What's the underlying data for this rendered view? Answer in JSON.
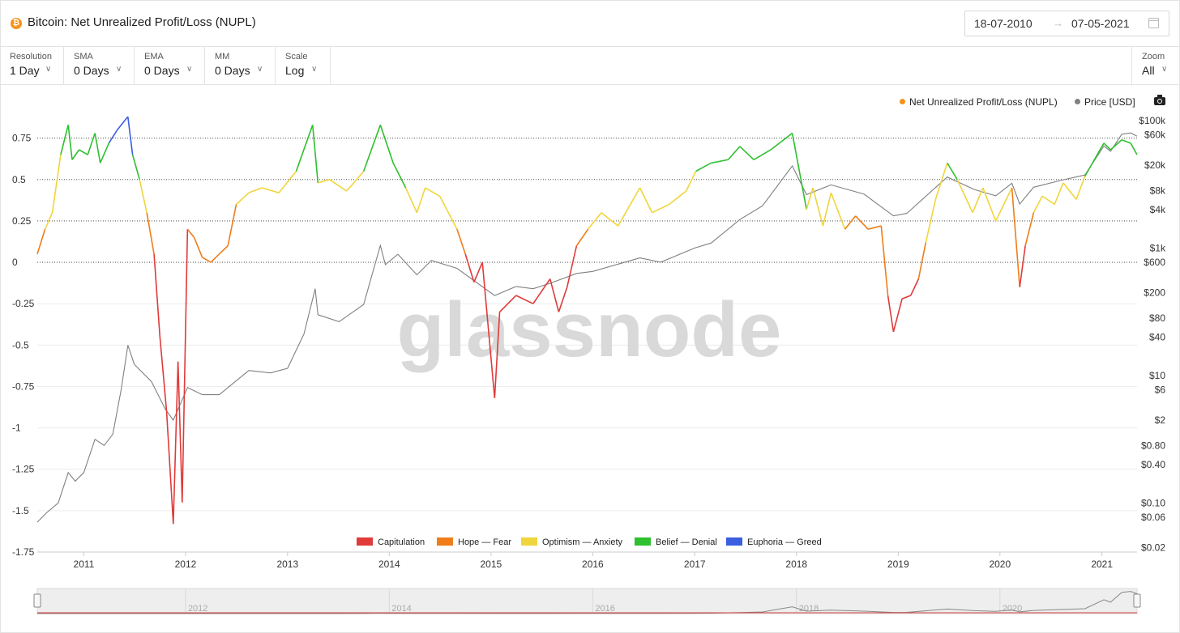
{
  "header": {
    "coin_icon": "bitcoin-icon",
    "title": "Bitcoin: Net Unrealized Profit/Loss (NUPL)",
    "date_start": "18-07-2010",
    "date_end": "07-05-2021",
    "date_arrow": "→",
    "calendar_icon": "calendar-icon"
  },
  "toolbar": {
    "resolution": {
      "label": "Resolution",
      "value": "1 Day"
    },
    "sma": {
      "label": "SMA",
      "value": "0 Days"
    },
    "ema": {
      "label": "EMA",
      "value": "0 Days"
    },
    "mm": {
      "label": "MM",
      "value": "0 Days"
    },
    "scale": {
      "label": "Scale",
      "value": "Log"
    },
    "zoom": {
      "label": "Zoom",
      "value": "All"
    },
    "chevron": "∨"
  },
  "legend_top": {
    "nupl": {
      "label": "Net Unrealized Profit/Loss (NUPL)",
      "color": "#f7931a"
    },
    "price": {
      "label": "Price [USD]",
      "color": "#808080"
    },
    "camera_icon": "camera-icon"
  },
  "watermark": "glassnode",
  "chart_data": {
    "type": "line",
    "x_axis": {
      "ticks": [
        "2011",
        "2012",
        "2013",
        "2014",
        "2015",
        "2016",
        "2017",
        "2018",
        "2019",
        "2020",
        "2021"
      ],
      "range": [
        "2010-07-18",
        "2021-05-07"
      ]
    },
    "y_left": {
      "ticks": [
        "0.75",
        "0.5",
        "0.25",
        "0",
        "-0.25",
        "-0.5",
        "-0.75",
        "-1",
        "-1.25",
        "-1.5",
        "-1.75"
      ],
      "range": [
        -1.75,
        0.9
      ],
      "dotted_lines": [
        0.75,
        0.5,
        0.25,
        0
      ]
    },
    "y_right": {
      "scale": "log",
      "ticks": [
        {
          "label": "$100k",
          "value": 100000
        },
        {
          "label": "$60k",
          "value": 60000
        },
        {
          "label": "$20k",
          "value": 20000
        },
        {
          "label": "$8k",
          "value": 8000
        },
        {
          "label": "$4k",
          "value": 4000
        },
        {
          "label": "$1k",
          "value": 1000
        },
        {
          "label": "$600",
          "value": 600
        },
        {
          "label": "$200",
          "value": 200
        },
        {
          "label": "$80",
          "value": 80
        },
        {
          "label": "$40",
          "value": 40
        },
        {
          "label": "$10",
          "value": 10
        },
        {
          "label": "$6",
          "value": 6
        },
        {
          "label": "$2",
          "value": 2
        },
        {
          "label": "$0.80",
          "value": 0.8
        },
        {
          "label": "$0.40",
          "value": 0.4
        },
        {
          "label": "$0.10",
          "value": 0.1
        },
        {
          "label": "$0.06",
          "value": 0.06
        },
        {
          "label": "$0.02",
          "value": 0.02
        }
      ]
    },
    "zones": [
      {
        "name": "Capitulation",
        "color": "#e03a3a",
        "min": -10,
        "max": 0
      },
      {
        "name": "Hope — Fear",
        "color": "#ef7d1a",
        "min": 0,
        "max": 0.25
      },
      {
        "name": "Optimism — Anxiety",
        "color": "#f0d53c",
        "min": 0.25,
        "max": 0.5
      },
      {
        "name": "Belief — Denial",
        "color": "#2ec02e",
        "min": 0.5,
        "max": 0.75
      },
      {
        "name": "Euphoria — Greed",
        "color": "#3b5fe0",
        "min": 0.75,
        "max": 10
      }
    ],
    "series": [
      {
        "name": "Net Unrealized Profit/Loss (NUPL)",
        "axis": "left",
        "points": [
          [
            "2010-07-18",
            0.05
          ],
          [
            "2010-08-15",
            0.2
          ],
          [
            "2010-09-10",
            0.3
          ],
          [
            "2010-10-10",
            0.65
          ],
          [
            "2010-11-06",
            0.83
          ],
          [
            "2010-11-20",
            0.62
          ],
          [
            "2010-12-15",
            0.68
          ],
          [
            "2011-01-15",
            0.65
          ],
          [
            "2011-02-10",
            0.78
          ],
          [
            "2011-03-01",
            0.6
          ],
          [
            "2011-04-01",
            0.72
          ],
          [
            "2011-05-01",
            0.8
          ],
          [
            "2011-06-08",
            0.88
          ],
          [
            "2011-06-25",
            0.65
          ],
          [
            "2011-07-20",
            0.5
          ],
          [
            "2011-08-15",
            0.3
          ],
          [
            "2011-09-10",
            0.05
          ],
          [
            "2011-10-01",
            -0.45
          ],
          [
            "2011-10-25",
            -0.9
          ],
          [
            "2011-11-18",
            -1.58
          ],
          [
            "2011-12-05",
            -0.6
          ],
          [
            "2011-12-20",
            -1.45
          ],
          [
            "2012-01-08",
            0.2
          ],
          [
            "2012-02-01",
            0.15
          ],
          [
            "2012-03-01",
            0.03
          ],
          [
            "2012-04-01",
            0.0
          ],
          [
            "2012-05-01",
            0.05
          ],
          [
            "2012-06-01",
            0.1
          ],
          [
            "2012-07-01",
            0.35
          ],
          [
            "2012-08-15",
            0.42
          ],
          [
            "2012-10-01",
            0.45
          ],
          [
            "2012-12-01",
            0.42
          ],
          [
            "2013-02-01",
            0.55
          ],
          [
            "2013-04-01",
            0.83
          ],
          [
            "2013-04-20",
            0.48
          ],
          [
            "2013-06-01",
            0.5
          ],
          [
            "2013-08-01",
            0.43
          ],
          [
            "2013-10-01",
            0.55
          ],
          [
            "2013-11-30",
            0.83
          ],
          [
            "2014-01-15",
            0.6
          ],
          [
            "2014-03-01",
            0.45
          ],
          [
            "2014-04-10",
            0.3
          ],
          [
            "2014-05-10",
            0.45
          ],
          [
            "2014-07-01",
            0.4
          ],
          [
            "2014-09-01",
            0.2
          ],
          [
            "2014-10-01",
            0.05
          ],
          [
            "2014-11-01",
            -0.12
          ],
          [
            "2014-12-01",
            0.0
          ],
          [
            "2015-01-14",
            -0.82
          ],
          [
            "2015-02-01",
            -0.3
          ],
          [
            "2015-04-01",
            -0.2
          ],
          [
            "2015-06-01",
            -0.25
          ],
          [
            "2015-08-01",
            -0.1
          ],
          [
            "2015-09-01",
            -0.3
          ],
          [
            "2015-10-01",
            -0.15
          ],
          [
            "2015-11-04",
            0.1
          ],
          [
            "2015-12-15",
            0.2
          ],
          [
            "2016-02-01",
            0.3
          ],
          [
            "2016-04-01",
            0.22
          ],
          [
            "2016-06-18",
            0.45
          ],
          [
            "2016-08-01",
            0.3
          ],
          [
            "2016-10-01",
            0.35
          ],
          [
            "2016-12-01",
            0.43
          ],
          [
            "2017-01-05",
            0.55
          ],
          [
            "2017-03-01",
            0.6
          ],
          [
            "2017-05-01",
            0.62
          ],
          [
            "2017-06-12",
            0.7
          ],
          [
            "2017-08-01",
            0.62
          ],
          [
            "2017-10-01",
            0.68
          ],
          [
            "2017-12-17",
            0.78
          ],
          [
            "2018-02-06",
            0.32
          ],
          [
            "2018-03-01",
            0.45
          ],
          [
            "2018-04-06",
            0.22
          ],
          [
            "2018-05-05",
            0.42
          ],
          [
            "2018-06-24",
            0.2
          ],
          [
            "2018-08-01",
            0.28
          ],
          [
            "2018-09-15",
            0.2
          ],
          [
            "2018-11-01",
            0.22
          ],
          [
            "2018-11-25",
            -0.2
          ],
          [
            "2018-12-15",
            -0.42
          ],
          [
            "2019-01-15",
            -0.22
          ],
          [
            "2019-02-15",
            -0.2
          ],
          [
            "2019-03-15",
            -0.1
          ],
          [
            "2019-04-10",
            0.12
          ],
          [
            "2019-05-15",
            0.38
          ],
          [
            "2019-06-26",
            0.6
          ],
          [
            "2019-08-01",
            0.5
          ],
          [
            "2019-09-25",
            0.3
          ],
          [
            "2019-11-01",
            0.45
          ],
          [
            "2019-12-17",
            0.25
          ],
          [
            "2020-02-13",
            0.45
          ],
          [
            "2020-03-12",
            -0.15
          ],
          [
            "2020-04-01",
            0.1
          ],
          [
            "2020-05-01",
            0.3
          ],
          [
            "2020-06-01",
            0.4
          ],
          [
            "2020-07-15",
            0.35
          ],
          [
            "2020-08-15",
            0.48
          ],
          [
            "2020-10-01",
            0.38
          ],
          [
            "2020-11-01",
            0.52
          ],
          [
            "2020-12-15",
            0.65
          ],
          [
            "2021-01-08",
            0.72
          ],
          [
            "2021-02-01",
            0.68
          ],
          [
            "2021-03-13",
            0.74
          ],
          [
            "2021-04-14",
            0.72
          ],
          [
            "2021-05-07",
            0.65
          ]
        ]
      },
      {
        "name": "Price [USD]",
        "axis": "right",
        "color": "#808080",
        "points": [
          [
            "2010-07-18",
            0.05
          ],
          [
            "2010-08-20",
            0.07
          ],
          [
            "2010-10-01",
            0.1
          ],
          [
            "2010-11-06",
            0.3
          ],
          [
            "2010-12-01",
            0.22
          ],
          [
            "2011-01-01",
            0.3
          ],
          [
            "2011-02-10",
            1.0
          ],
          [
            "2011-03-15",
            0.8
          ],
          [
            "2011-04-15",
            1.2
          ],
          [
            "2011-05-15",
            6.0
          ],
          [
            "2011-06-08",
            30
          ],
          [
            "2011-07-01",
            15
          ],
          [
            "2011-08-10",
            10
          ],
          [
            "2011-09-01",
            8
          ],
          [
            "2011-10-20",
            3
          ],
          [
            "2011-11-18",
            2.0
          ],
          [
            "2012-01-08",
            6.5
          ],
          [
            "2012-03-01",
            5
          ],
          [
            "2012-05-01",
            5
          ],
          [
            "2012-08-15",
            12
          ],
          [
            "2012-11-01",
            11
          ],
          [
            "2013-01-01",
            13
          ],
          [
            "2013-03-01",
            45
          ],
          [
            "2013-04-10",
            230
          ],
          [
            "2013-04-20",
            90
          ],
          [
            "2013-07-05",
            70
          ],
          [
            "2013-10-01",
            130
          ],
          [
            "2013-11-30",
            1100
          ],
          [
            "2013-12-18",
            550
          ],
          [
            "2014-02-01",
            800
          ],
          [
            "2014-04-10",
            380
          ],
          [
            "2014-06-01",
            640
          ],
          [
            "2014-09-01",
            480
          ],
          [
            "2015-01-14",
            180
          ],
          [
            "2015-04-01",
            250
          ],
          [
            "2015-06-01",
            230
          ],
          [
            "2015-08-01",
            280
          ],
          [
            "2015-11-04",
            400
          ],
          [
            "2016-01-01",
            430
          ],
          [
            "2016-06-18",
            700
          ],
          [
            "2016-09-01",
            600
          ],
          [
            "2017-01-01",
            1000
          ],
          [
            "2017-03-01",
            1200
          ],
          [
            "2017-06-12",
            2800
          ],
          [
            "2017-09-01",
            4600
          ],
          [
            "2017-12-17",
            19500
          ],
          [
            "2018-02-06",
            6900
          ],
          [
            "2018-05-05",
            9800
          ],
          [
            "2018-09-01",
            7000
          ],
          [
            "2018-12-15",
            3200
          ],
          [
            "2019-02-01",
            3500
          ],
          [
            "2019-06-26",
            13000
          ],
          [
            "2019-10-01",
            8300
          ],
          [
            "2019-12-17",
            6600
          ],
          [
            "2020-02-13",
            10400
          ],
          [
            "2020-03-12",
            4900
          ],
          [
            "2020-05-01",
            9000
          ],
          [
            "2020-08-15",
            11800
          ],
          [
            "2020-11-01",
            14000
          ],
          [
            "2021-01-08",
            40000
          ],
          [
            "2021-02-01",
            33000
          ],
          [
            "2021-03-13",
            61000
          ],
          [
            "2021-04-14",
            64000
          ],
          [
            "2021-05-07",
            57000
          ]
        ]
      }
    ],
    "navigator": {
      "ticks": [
        "2012",
        "2014",
        "2016",
        "2018",
        "2020"
      ]
    }
  }
}
